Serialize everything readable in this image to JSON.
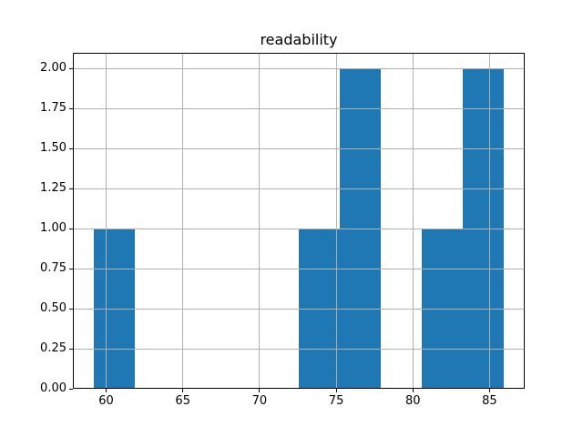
{
  "figure": {
    "background": "#ffffff",
    "frame_color": "#000000"
  },
  "chart_data": {
    "type": "bar",
    "subtype": "histogram",
    "title": "readability",
    "xlabel": "",
    "ylabel": "",
    "bin_edges": [
      59.2,
      61.87,
      64.54,
      67.22,
      69.89,
      72.56,
      75.23,
      77.91,
      80.58,
      83.25,
      85.92
    ],
    "counts": [
      1,
      0,
      0,
      0,
      0,
      1,
      2,
      0,
      1,
      2
    ],
    "xlim": [
      57.83,
      87.29
    ],
    "ylim": [
      0,
      2.1
    ],
    "x_ticks": [
      {
        "v": 60,
        "label": "60"
      },
      {
        "v": 65,
        "label": "65"
      },
      {
        "v": 70,
        "label": "70"
      },
      {
        "v": 75,
        "label": "75"
      },
      {
        "v": 80,
        "label": "80"
      },
      {
        "v": 85,
        "label": "85"
      }
    ],
    "y_ticks": [
      {
        "v": 0.0,
        "label": "0.00"
      },
      {
        "v": 0.25,
        "label": "0.25"
      },
      {
        "v": 0.5,
        "label": "0.50"
      },
      {
        "v": 0.75,
        "label": "0.75"
      },
      {
        "v": 1.0,
        "label": "1.00"
      },
      {
        "v": 1.25,
        "label": "1.25"
      },
      {
        "v": 1.5,
        "label": "1.50"
      },
      {
        "v": 1.75,
        "label": "1.75"
      },
      {
        "v": 2.0,
        "label": "2.00"
      }
    ],
    "grid": true,
    "grid_color": "#b0b0b0",
    "bar_color": "#1f77b4",
    "legend_position": "none"
  }
}
